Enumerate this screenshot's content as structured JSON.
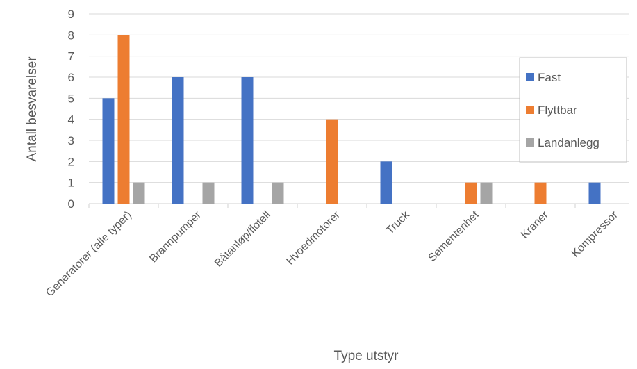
{
  "chart_data": {
    "type": "bar",
    "title": "",
    "xlabel": "Type utstyr",
    "ylabel": "Antall besvarelser",
    "ylim": [
      0,
      9
    ],
    "yticks": [
      0,
      1,
      2,
      3,
      4,
      5,
      6,
      7,
      8,
      9
    ],
    "grid": true,
    "legend_position": "right",
    "categories": [
      "Generatorer (alle typer)",
      "Brannpumper",
      "Båtanløp/flotell",
      "Hvoedmotorer",
      "Truck",
      "Sementenhet",
      "Kraner",
      "Kompressor"
    ],
    "series": [
      {
        "name": "Fast",
        "color": "#4472C4",
        "values": [
          5,
          6,
          6,
          0,
          2,
          0,
          0,
          1
        ]
      },
      {
        "name": "Flyttbar",
        "color": "#ED7D31",
        "values": [
          8,
          0,
          0,
          4,
          0,
          1,
          1,
          0
        ]
      },
      {
        "name": "Landanlegg",
        "color": "#A5A5A5",
        "values": [
          1,
          1,
          1,
          0,
          0,
          1,
          0,
          0
        ]
      }
    ]
  }
}
